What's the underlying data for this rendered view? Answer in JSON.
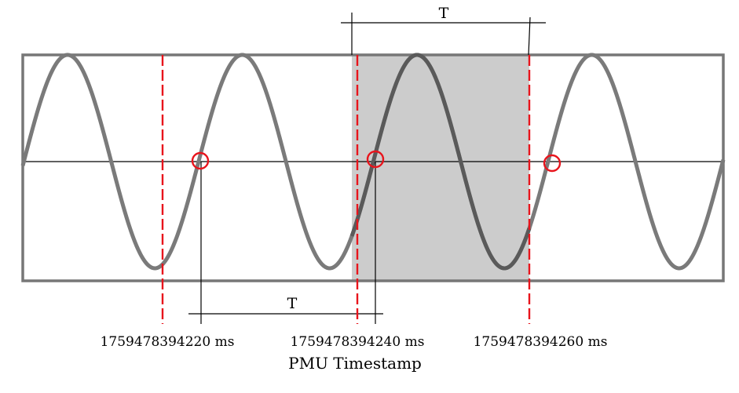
{
  "diagram": {
    "period_label_top": "T",
    "period_label_bottom": "T",
    "timestamps": [
      "1759478394220 ms",
      "1759478394240 ms",
      "1759478394260 ms"
    ],
    "axis_title": "PMU Timestamp",
    "colors": {
      "wave": "#7a7a7a",
      "wave_dark": "#5a5a5a",
      "marker": "#e8141c",
      "window_fill": "#cccccc",
      "frame": "#777777",
      "line": "#000000"
    }
  }
}
